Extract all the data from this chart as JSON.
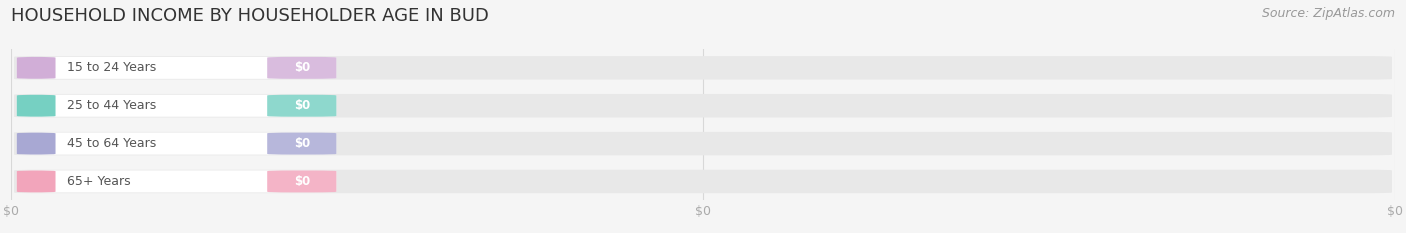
{
  "title": "HOUSEHOLD INCOME BY HOUSEHOLDER AGE IN BUD",
  "source": "Source: ZipAtlas.com",
  "categories": [
    "15 to 24 Years",
    "25 to 44 Years",
    "45 to 64 Years",
    "65+ Years"
  ],
  "values": [
    0,
    0,
    0,
    0
  ],
  "bar_colors": [
    "#c9a0d0",
    "#5ec8b8",
    "#9999cc",
    "#f095b0"
  ],
  "bar_bg_color": "#e8e8e8",
  "white_pill_color": "#ffffff",
  "background_color": "#f5f5f5",
  "value_label": "$0",
  "title_fontsize": 13,
  "source_fontsize": 9,
  "tick_fontsize": 9,
  "grid_color": "#d8d8d8",
  "text_color": "#555555",
  "tick_label_color": "#aaaaaa",
  "xtick_positions": [
    0,
    0.5,
    1.0
  ],
  "xtick_labels": [
    "$0",
    "$0",
    "$0"
  ]
}
